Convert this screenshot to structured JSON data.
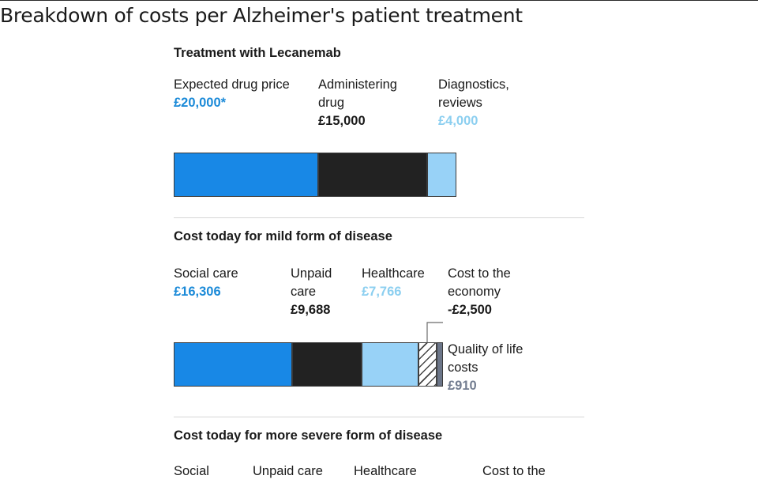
{
  "title": "Breakdown of costs per Alzheimer's patient treatment",
  "colors": {
    "blue": "#1888e6",
    "black": "#222222",
    "light_blue": "#98d2f7",
    "grey": "#6b7588",
    "blue_text": "#1b8ad8",
    "light_blue_text": "#8ccff0",
    "grey_text": "#737d90"
  },
  "chart_data": [
    {
      "type": "bar",
      "orientation": "horizontal-stacked",
      "title": "Treatment with Lecanemab",
      "series": [
        {
          "name": "Expected drug price",
          "value": 20000,
          "label": "£20,000*",
          "color": "blue"
        },
        {
          "name": "Administering drug",
          "value": 15000,
          "label": "£15,000",
          "color": "black"
        },
        {
          "name": "Diagnostics, reviews",
          "value": 4000,
          "label": "£4,000",
          "color": "light_blue"
        }
      ]
    },
    {
      "type": "bar",
      "orientation": "horizontal-stacked",
      "title": "Cost today for mild form of disease",
      "series": [
        {
          "name": "Social care",
          "value": 16306,
          "label": "£16,306",
          "color": "blue"
        },
        {
          "name": "Unpaid care",
          "value": 9688,
          "label": "£9,688",
          "color": "black"
        },
        {
          "name": "Healthcare",
          "value": 7766,
          "label": "£7,766",
          "color": "light_blue"
        },
        {
          "name": "Cost to the economy",
          "value": 2500,
          "label": "-£2,500",
          "color": "hatched"
        },
        {
          "name": "Quality of life costs",
          "value": 910,
          "label": "£910",
          "color": "grey"
        }
      ]
    },
    {
      "type": "bar",
      "orientation": "horizontal-stacked",
      "title": "Cost today for more severe form of disease",
      "series": [
        {
          "name": "Social"
        },
        {
          "name": "Unpaid care"
        },
        {
          "name": "Healthcare"
        },
        {
          "name": "Cost to the"
        }
      ]
    }
  ]
}
